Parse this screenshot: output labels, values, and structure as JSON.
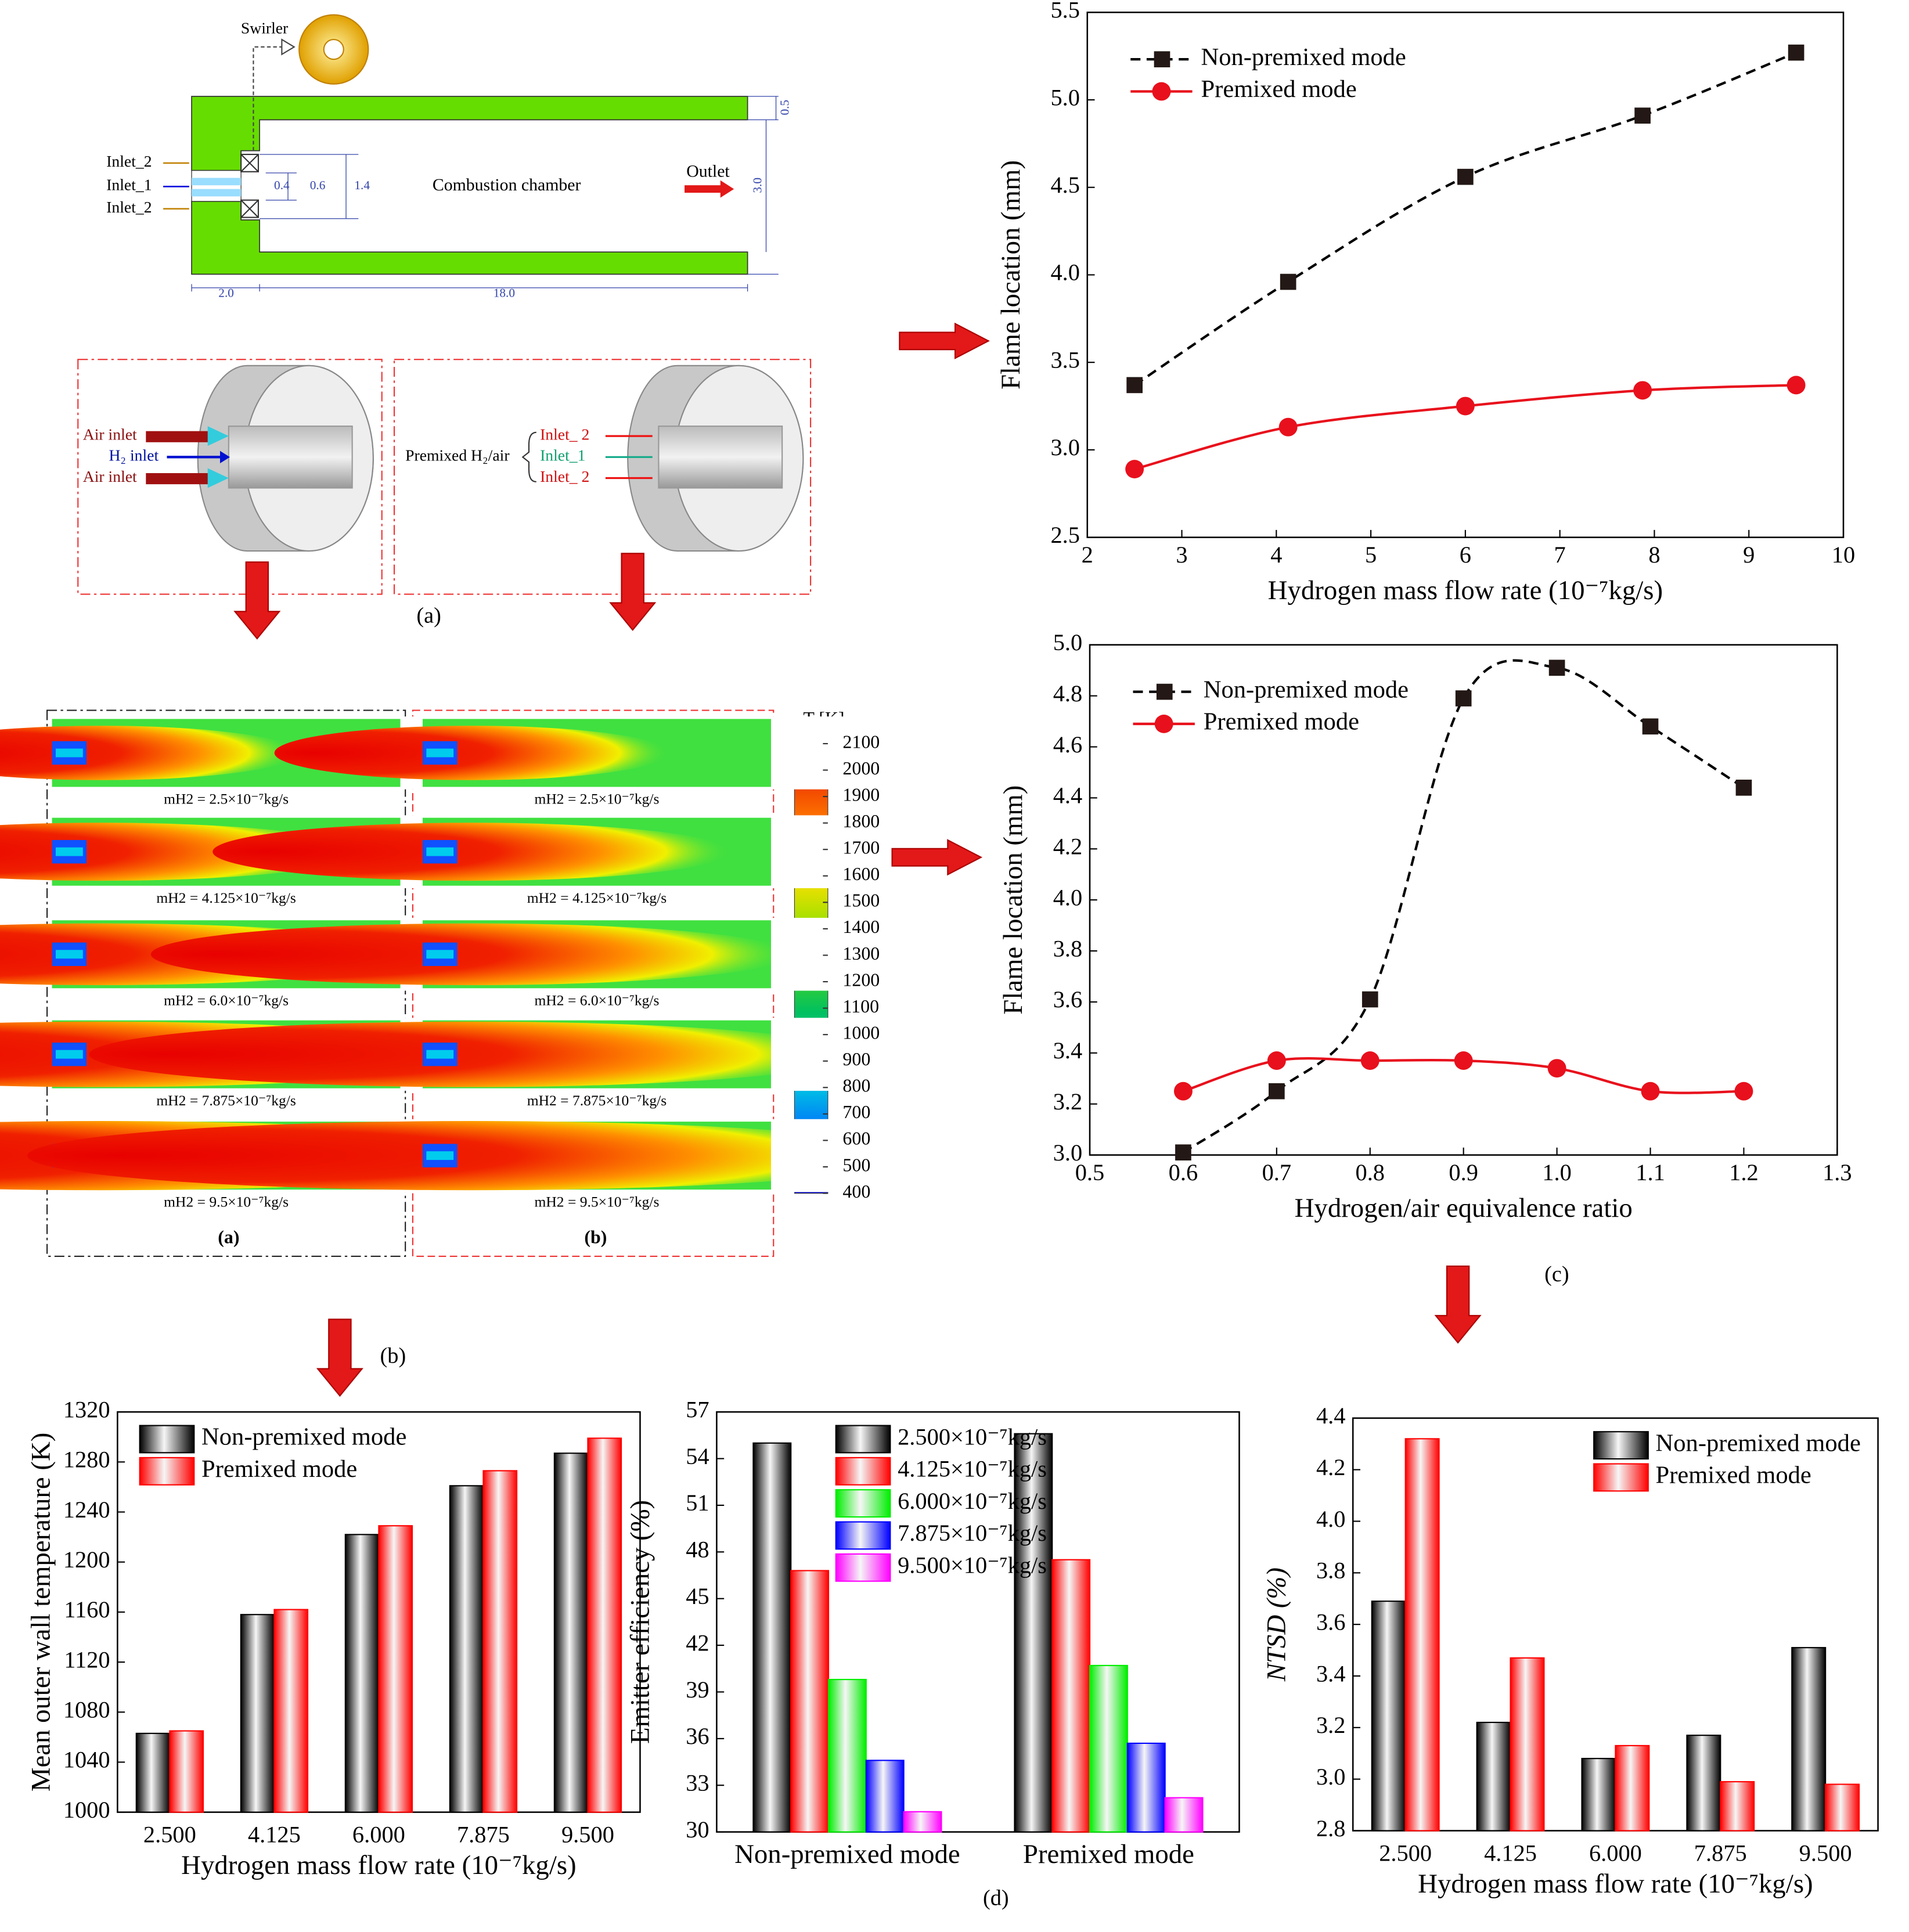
{
  "chart_data": [
    {
      "type": "line",
      "xlabel": "Hydrogen mass flow rate (10⁻⁷kg/s)",
      "ylabel": "Flame location (mm)",
      "x": [
        2.5,
        4.125,
        6.0,
        7.875,
        9.5
      ],
      "series": [
        {
          "name": "Non-premixed mode",
          "color": "#000000",
          "line_style": "dashed",
          "marker": "square",
          "values": [
            3.37,
            3.96,
            4.56,
            4.91,
            5.27
          ]
        },
        {
          "name": "Premixed mode",
          "color": "#e8101c",
          "line_style": "solid",
          "marker": "circle",
          "values": [
            2.89,
            3.13,
            3.25,
            3.34,
            3.37
          ]
        }
      ],
      "xlim": [
        2,
        10
      ],
      "xticks": [
        2,
        3,
        4,
        5,
        6,
        7,
        8,
        9,
        10
      ],
      "ylim": [
        2.5,
        5.5
      ],
      "yticks": [
        2.5,
        {
          "value": 3,
          "label": "3.0"
        },
        3.5,
        {
          "value": 4,
          "label": "4.0"
        },
        4.5,
        {
          "value": 5,
          "label": "5.0"
        },
        5.5
      ],
      "legend": "upper left"
    },
    {
      "type": "line",
      "xlabel": "Hydrogen/air equivalence ratio",
      "ylabel": "Flame location (mm)",
      "x": [
        0.6,
        0.7,
        0.8,
        0.9,
        1.0,
        1.1,
        1.2
      ],
      "series": [
        {
          "name": "Non-premixed mode",
          "color": "#000000",
          "line_style": "dashed",
          "marker": "square",
          "values": [
            3.01,
            3.25,
            3.61,
            4.79,
            4.91,
            4.68,
            4.44
          ]
        },
        {
          "name": "Premixed mode",
          "color": "#e8101c",
          "line_style": "solid",
          "marker": "circle",
          "values": [
            3.25,
            3.37,
            3.37,
            3.37,
            3.34,
            3.25,
            3.25
          ]
        }
      ],
      "xlim": [
        0.5,
        1.3
      ],
      "xticks": [
        0.5,
        0.6,
        0.7,
        0.8,
        0.9,
        {
          "value": 1,
          "label": "1.0"
        },
        1.1,
        1.2,
        1.3
      ],
      "ylim": [
        3.0,
        5.0
      ],
      "yticks": [
        {
          "value": 3,
          "label": "3.0"
        },
        3.2,
        3.4,
        3.6,
        3.8,
        {
          "value": 4,
          "label": "4.0"
        },
        4.2,
        4.4,
        4.6,
        4.8,
        {
          "value": 5,
          "label": "5.0"
        }
      ],
      "legend": "upper left"
    },
    {
      "type": "bar",
      "xlabel": "Hydrogen mass flow rate (10⁻⁷kg/s)",
      "ylabel": "Mean outer wall temperature (K)",
      "categories": [
        "2.500",
        "4.125",
        "6.000",
        "7.875",
        "9.500"
      ],
      "series": [
        {
          "name": "Non-premixed mode",
          "color": "#000000",
          "values": [
            1063,
            1158,
            1222,
            1261,
            1287
          ]
        },
        {
          "name": "Premixed mode",
          "color": "#ff0000",
          "values": [
            1065,
            1162,
            1229,
            1273,
            1299
          ]
        }
      ],
      "ylim": [
        1000,
        1320
      ],
      "yticks": [
        1000,
        1040,
        1080,
        1120,
        1160,
        1200,
        1240,
        1280,
        1320
      ],
      "legend": "upper left"
    },
    {
      "type": "bar",
      "ylabel": "Emitter efficiency (%)",
      "categories": [
        "Non-premixed mode",
        "Premixed mode"
      ],
      "series": [
        {
          "name": "2.500×10⁻⁷kg/s",
          "color": "#000000",
          "values": [
            55.0,
            55.6
          ]
        },
        {
          "name": "4.125×10⁻⁷kg/s",
          "color": "#ff0000",
          "values": [
            46.8,
            47.5
          ]
        },
        {
          "name": "6.000×10⁻⁷kg/s",
          "color": "#00ee00",
          "values": [
            39.8,
            40.7
          ]
        },
        {
          "name": "7.875×10⁻⁷kg/s",
          "color": "#0000ff",
          "values": [
            34.6,
            35.7
          ]
        },
        {
          "name": "9.500×10⁻⁷kg/s",
          "color": "#ff00ff",
          "values": [
            31.3,
            32.2
          ]
        }
      ],
      "ylim": [
        30,
        57
      ],
      "yticks": [
        30,
        33,
        36,
        39,
        42,
        45,
        48,
        51,
        54,
        57
      ],
      "legend": "upper center"
    },
    {
      "type": "bar",
      "xlabel": "Hydrogen mass flow rate (10⁻⁷kg/s)",
      "ylabel": "NTSD (%)",
      "categories": [
        "2.500",
        "4.125",
        "6.000",
        "7.875",
        "9.500"
      ],
      "series": [
        {
          "name": "Non-premixed mode",
          "color": "#000000",
          "values": [
            3.69,
            3.22,
            3.08,
            3.17,
            3.51
          ]
        },
        {
          "name": "Premixed mode",
          "color": "#ff0000",
          "values": [
            4.32,
            3.47,
            3.13,
            2.99,
            2.98
          ]
        }
      ],
      "ylim": [
        2.8,
        4.4
      ],
      "yticks": [
        2.8,
        {
          "value": 3,
          "label": "3.0"
        },
        3.2,
        3.4,
        3.6,
        3.8,
        {
          "value": 4,
          "label": "4.0"
        },
        4.2,
        4.4
      ],
      "legend": "upper right"
    }
  ],
  "schematic": {
    "swirler": "Swirler",
    "inlet_2a": "Inlet_2",
    "inlet_1": "Inlet_1",
    "inlet_2b": "Inlet_2",
    "chamber": "Combustion chamber",
    "outlet": "Outlet",
    "dims": [
      "0.4",
      "0.6",
      "1.4",
      "3.0",
      "0.5",
      "2.0",
      "18.0"
    ]
  },
  "inlet_panels": {
    "air_a": "Air inlet",
    "h2": "H₂ inlet",
    "air_b": "Air inlet",
    "premixed": "Premixed H₂/air",
    "in2a": "Inlet_ 2",
    "in1": "Inlet_1",
    "in2b": "Inlet_ 2"
  },
  "contours": {
    "captions": [
      "mH2 = 2.5×10⁻⁷kg/s",
      "mH2 = 4.125×10⁻⁷kg/s",
      "mH2 = 6.0×10⁻⁷kg/s",
      "mH2 = 7.875×10⁻⁷kg/s",
      "mH2 = 9.5×10⁻⁷kg/s",
      "mH2 = 2.5×10⁻⁷kg/s",
      "mH2 = 4.125×10⁻⁷kg/s",
      "mH2 = 6.0×10⁻⁷kg/s",
      "mH2 = 7.875×10⁻⁷kg/s",
      "mH2 = 9.5×10⁻⁷kg/s"
    ],
    "panel_labels": [
      "(a)",
      "(b)"
    ],
    "colorbar": {
      "title": "T [K]",
      "clim": [
        400,
        2100
      ],
      "ticks": [
        400,
        500,
        600,
        700,
        800,
        900,
        1000,
        1100,
        1200,
        1300,
        1400,
        1500,
        1600,
        1700,
        1800,
        1900,
        2000,
        2100
      ]
    }
  },
  "figure_labels": {
    "a": "(a)",
    "b": "(b)",
    "c": "(c)",
    "d": "(d)"
  }
}
